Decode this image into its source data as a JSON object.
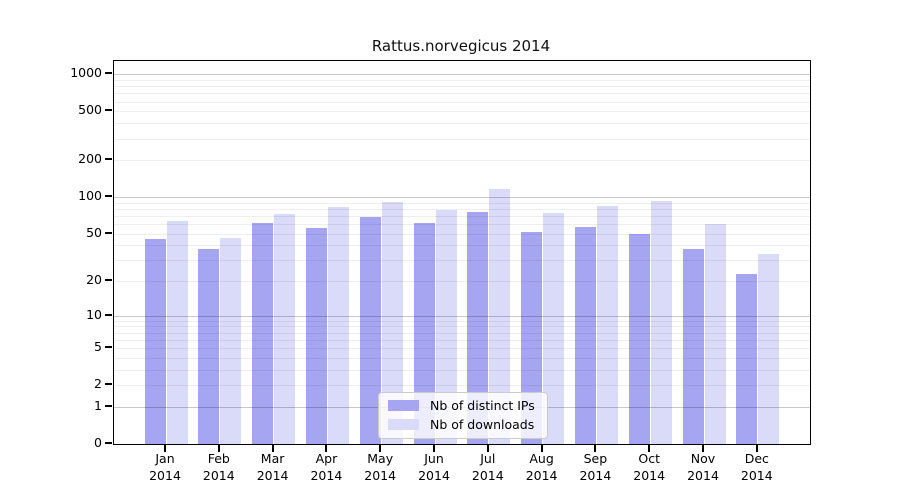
{
  "title": "Rattus.norvegicus 2014",
  "chart_data": {
    "type": "bar",
    "title": "Rattus.norvegicus 2014",
    "categories": [
      "Jan",
      "Feb",
      "Mar",
      "Apr",
      "May",
      "Jun",
      "Jul",
      "Aug",
      "Sep",
      "Oct",
      "Nov",
      "Dec"
    ],
    "year": "2014",
    "series": [
      {
        "name": "Nb of distinct IPs",
        "color": "#a5a5f2",
        "values": [
          45,
          37,
          61,
          56,
          69,
          61,
          76,
          52,
          57,
          50,
          37,
          23
        ]
      },
      {
        "name": "Nb of downloads",
        "color": "#dadaf9",
        "values": [
          64,
          46,
          73,
          83,
          91,
          78,
          116,
          74,
          85,
          92,
          60,
          34
        ]
      }
    ],
    "yscale": "log1p",
    "ylim": [
      0,
      1000
    ],
    "yticks": [
      0,
      1,
      2,
      5,
      10,
      20,
      50,
      100,
      200,
      500,
      1000
    ],
    "grid": true,
    "legend_position": "bottom-center",
    "axis_color": "#000000",
    "background_color": "#ffffff"
  }
}
